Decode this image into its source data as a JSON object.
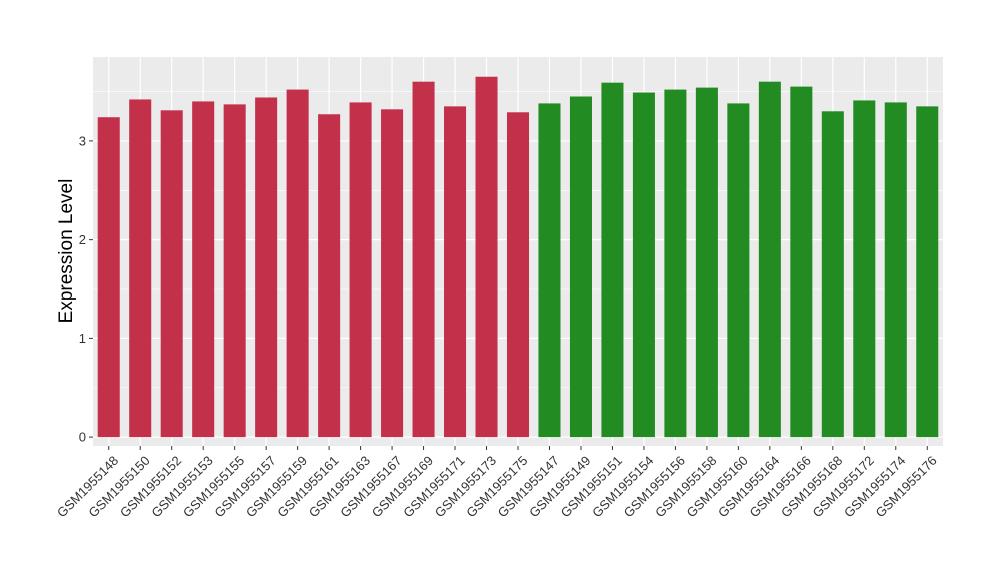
{
  "chart_data": {
    "type": "bar",
    "title": "",
    "xlabel": "",
    "ylabel": "Expression Level",
    "ylim": [
      -0.09,
      3.85
    ],
    "yticks": [
      0,
      1,
      2,
      3
    ],
    "grid": true,
    "categories": [
      "GSM1955148",
      "GSM1955150",
      "GSM1955152",
      "GSM1955153",
      "GSM1955155",
      "GSM1955157",
      "GSM1955159",
      "GSM1955161",
      "GSM1955163",
      "GSM1955167",
      "GSM1955169",
      "GSM1955171",
      "GSM1955173",
      "GSM1955175",
      "GSM1955147",
      "GSM1955149",
      "GSM1955151",
      "GSM1955154",
      "GSM1955156",
      "GSM1955158",
      "GSM1955160",
      "GSM1955164",
      "GSM1955166",
      "GSM1955168",
      "GSM1955172",
      "GSM1955174",
      "GSM1955176"
    ],
    "values": [
      3.24,
      3.42,
      3.31,
      3.4,
      3.37,
      3.44,
      3.52,
      3.27,
      3.39,
      3.32,
      3.6,
      3.35,
      3.65,
      3.29,
      3.38,
      3.45,
      3.59,
      3.49,
      3.52,
      3.54,
      3.38,
      3.6,
      3.55,
      3.3,
      3.41,
      3.39,
      3.35
    ],
    "bar_colors": [
      "#c3304a",
      "#c3304a",
      "#c3304a",
      "#c3304a",
      "#c3304a",
      "#c3304a",
      "#c3304a",
      "#c3304a",
      "#c3304a",
      "#c3304a",
      "#c3304a",
      "#c3304a",
      "#c3304a",
      "#c3304a",
      "#228b22",
      "#228b22",
      "#228b22",
      "#228b22",
      "#228b22",
      "#228b22",
      "#228b22",
      "#228b22",
      "#228b22",
      "#228b22",
      "#228b22",
      "#228b22",
      "#228b22"
    ],
    "panel_background": "#ebebeb",
    "grid_color": "#ffffff"
  }
}
